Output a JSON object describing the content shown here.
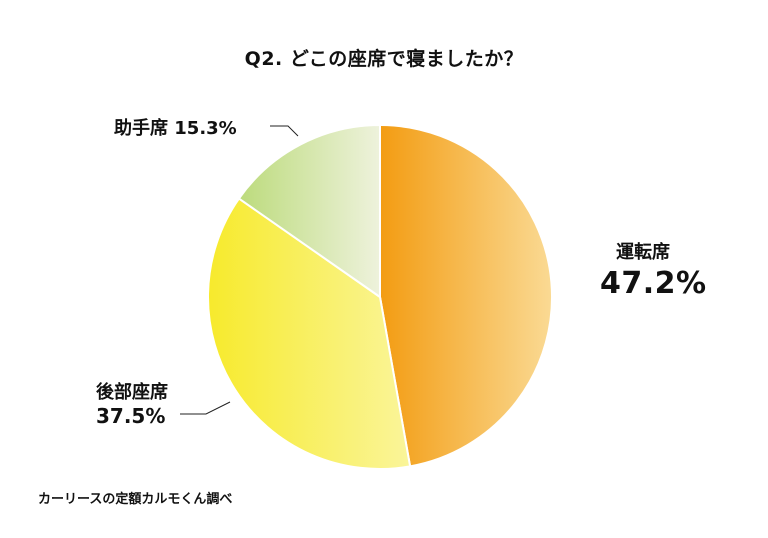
{
  "chart_data": {
    "type": "pie",
    "title": "Q2. どこの座席で寝ましたか？",
    "slices": [
      {
        "name": "運転席",
        "value": 47.2,
        "label": "47.2%",
        "color": "#F4A11A"
      },
      {
        "name": "後部座席",
        "value": 37.5,
        "label": "37.5%",
        "color": "#F8EE44"
      },
      {
        "name": "助手席",
        "value": 15.3,
        "label": "15.3%",
        "color": "#C4DE8A"
      }
    ],
    "legend": "none"
  },
  "labels": {
    "passenger": "助手席 15.3%",
    "driver_name": "運転席",
    "driver_pct": "47.2%",
    "rear_name": "後部座席",
    "rear_pct": "37.5%"
  },
  "source": "カーリースの定額カルモくん調べ"
}
